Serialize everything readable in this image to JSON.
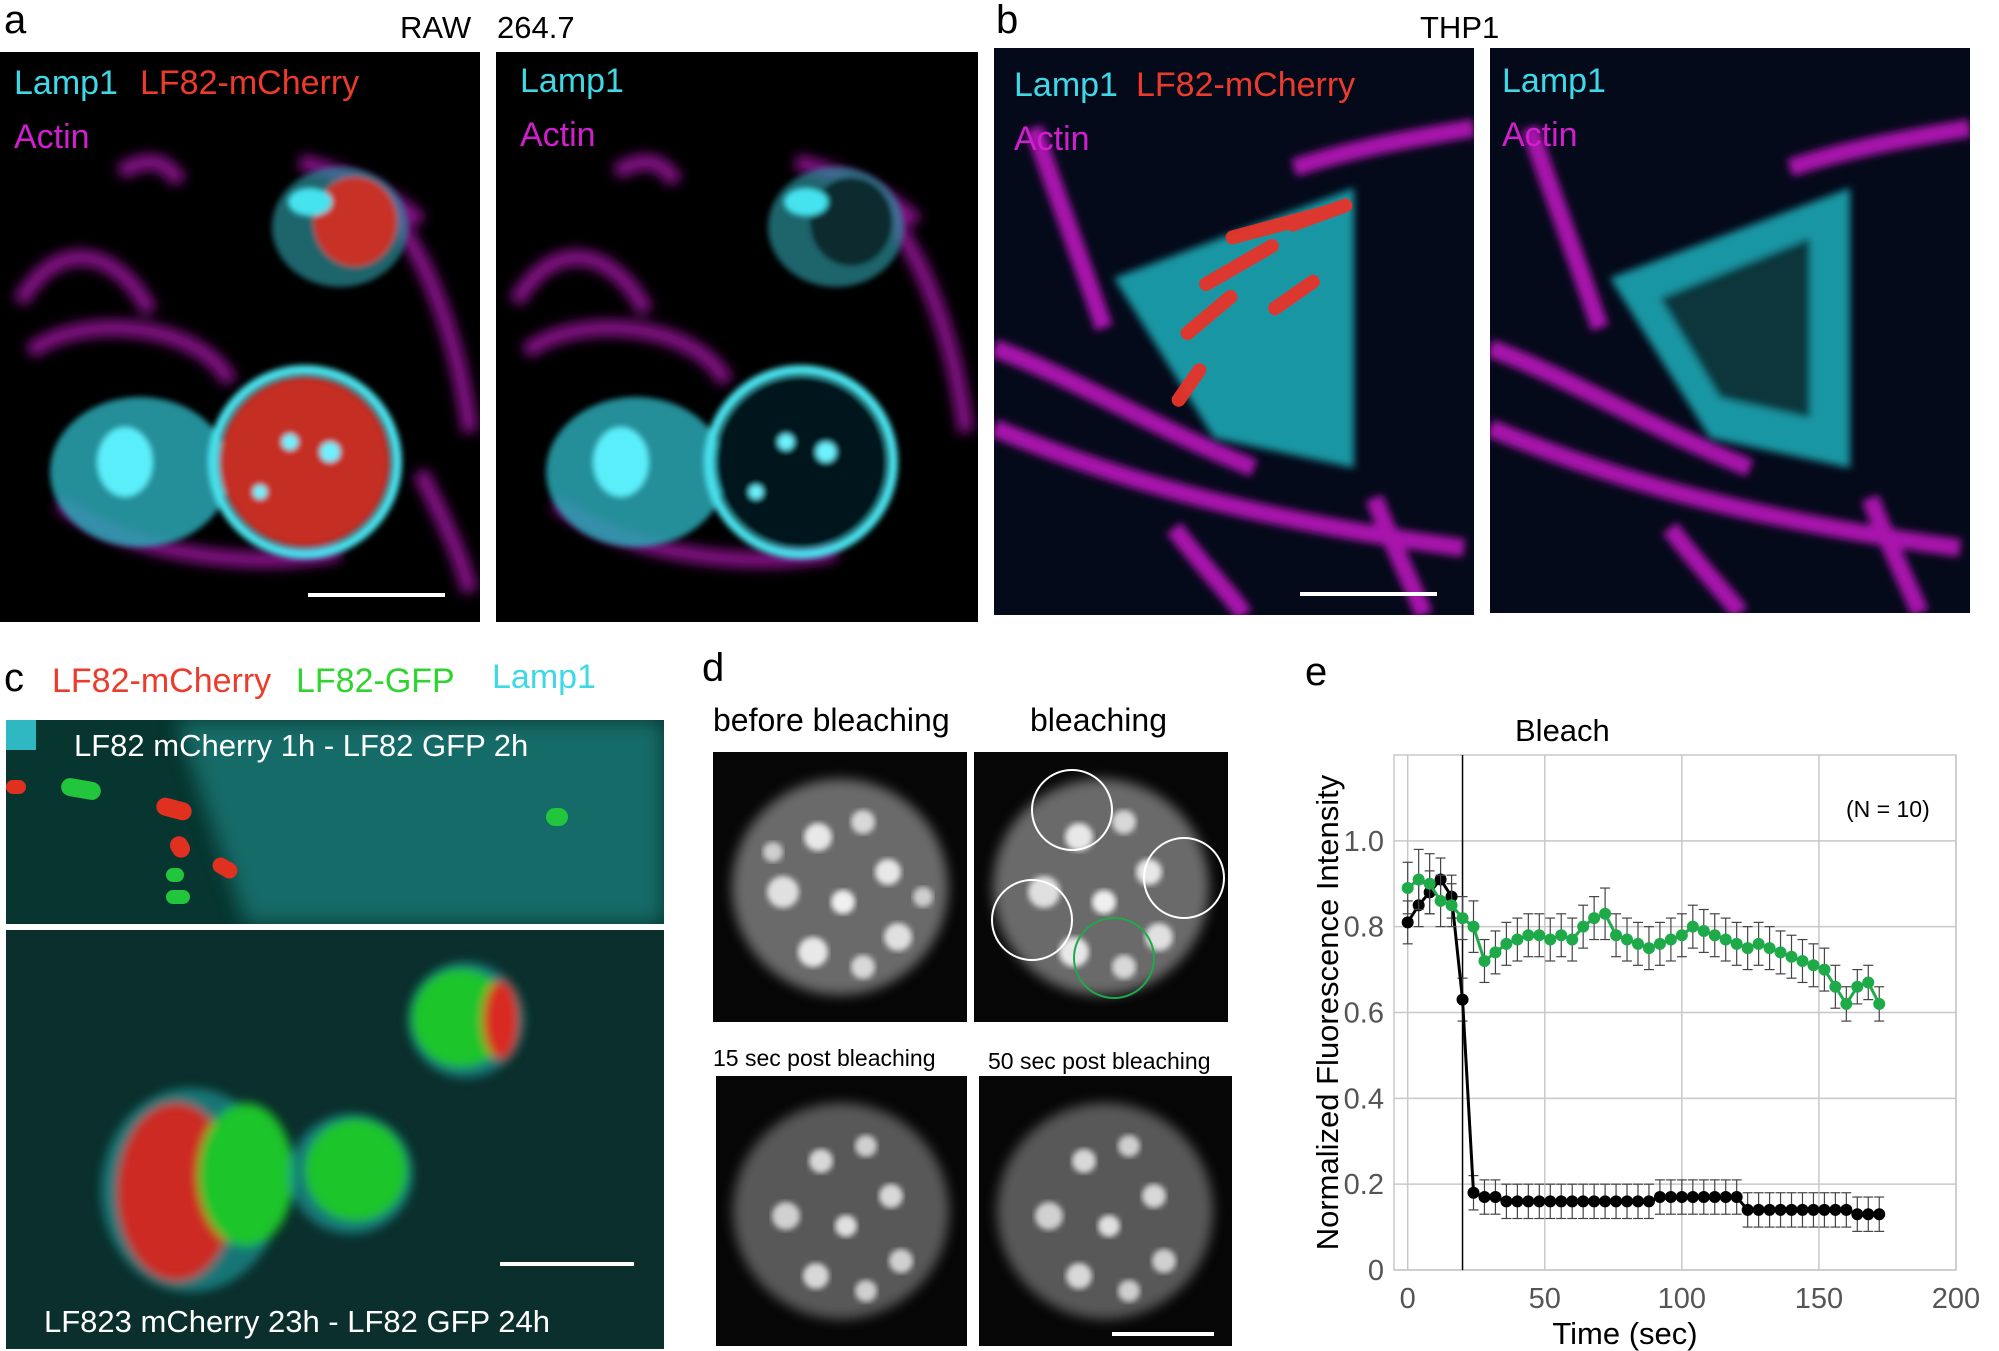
{
  "panels": {
    "a": {
      "letter": "a",
      "cell_line_part1": "RAW",
      "cell_line_part2": "264.7",
      "left": {
        "label1": "Lamp1",
        "label2": "LF82-mCherry",
        "label3": "Actin"
      },
      "right": {
        "label1": "Lamp1",
        "label2": "Actin"
      }
    },
    "b": {
      "letter": "b",
      "cell_line": "THP1",
      "left": {
        "label1": "Lamp1",
        "label2": "LF82-mCherry",
        "label3": "Actin"
      },
      "right": {
        "label1": "Lamp1",
        "label2": "Actin"
      }
    },
    "c": {
      "letter": "c",
      "legend1": "LF82-mCherry",
      "legend2": "LF82-GFP",
      "legend3": "Lamp1",
      "top_caption": "LF82 mCherry 1h - LF82 GFP 2h",
      "bottom_caption": "LF823 mCherry 23h - LF82 GFP 24h"
    },
    "d": {
      "letter": "d",
      "title1": "before bleaching",
      "title2": "bleaching",
      "title3": "15 sec post bleaching",
      "title4": "50 sec post bleaching"
    },
    "e": {
      "letter": "e",
      "bleach_label": "Bleach",
      "n_label": "(N = 10)"
    }
  },
  "colors": {
    "lamp1": "#3fd8e6",
    "mcherry": "#ec3b2a",
    "actin": "#d11fd0",
    "gfp": "#2fd52f",
    "green_series": "#1faa4a",
    "black_series": "#000000"
  },
  "chart_data": {
    "type": "line",
    "title": "",
    "xlabel": "Time (sec)",
    "ylabel": "Normalized Fluorescence Intensity",
    "xlim": [
      -5,
      200
    ],
    "ylim": [
      0,
      1.2
    ],
    "xticks": [
      0,
      50,
      100,
      150,
      200
    ],
    "yticks": [
      0,
      0.2,
      0.4,
      0.6,
      0.8,
      1.0
    ],
    "ytick_labels": [
      "0",
      "0.2",
      "0.4",
      "0.6",
      "0.8",
      "1.0"
    ],
    "grid": true,
    "bleach_time": 20,
    "series": [
      {
        "color": "#1faa4a",
        "x": [
          0,
          4,
          8,
          12,
          16,
          20,
          24,
          28,
          32,
          36,
          40,
          44,
          48,
          52,
          56,
          60,
          64,
          68,
          72,
          76,
          80,
          84,
          88,
          92,
          96,
          100,
          104,
          108,
          112,
          116,
          120,
          124,
          128,
          132,
          136,
          140,
          144,
          148,
          152,
          156,
          160,
          164,
          168,
          172
        ],
        "y": [
          0.89,
          0.91,
          0.9,
          0.86,
          0.85,
          0.82,
          0.8,
          0.72,
          0.74,
          0.76,
          0.77,
          0.78,
          0.78,
          0.77,
          0.78,
          0.77,
          0.8,
          0.82,
          0.83,
          0.78,
          0.77,
          0.76,
          0.75,
          0.76,
          0.77,
          0.78,
          0.8,
          0.79,
          0.78,
          0.77,
          0.76,
          0.75,
          0.76,
          0.75,
          0.74,
          0.73,
          0.72,
          0.71,
          0.7,
          0.66,
          0.62,
          0.66,
          0.67,
          0.62
        ],
        "err": [
          0.06,
          0.07,
          0.07,
          0.06,
          0.05,
          0.05,
          0.06,
          0.05,
          0.05,
          0.05,
          0.05,
          0.05,
          0.05,
          0.05,
          0.05,
          0.05,
          0.05,
          0.05,
          0.06,
          0.05,
          0.05,
          0.05,
          0.05,
          0.05,
          0.05,
          0.05,
          0.05,
          0.05,
          0.05,
          0.05,
          0.05,
          0.05,
          0.05,
          0.05,
          0.05,
          0.05,
          0.05,
          0.05,
          0.05,
          0.05,
          0.04,
          0.04,
          0.04,
          0.04
        ]
      },
      {
        "color": "#000000",
        "x": [
          0,
          4,
          8,
          12,
          16,
          20,
          24,
          28,
          32,
          36,
          40,
          44,
          48,
          52,
          56,
          60,
          64,
          68,
          72,
          76,
          80,
          84,
          88,
          92,
          96,
          100,
          104,
          108,
          112,
          116,
          120,
          124,
          128,
          132,
          136,
          140,
          144,
          148,
          152,
          156,
          160,
          164,
          168,
          172
        ],
        "y": [
          0.81,
          0.85,
          0.88,
          0.91,
          0.87,
          0.63,
          0.18,
          0.17,
          0.17,
          0.16,
          0.16,
          0.16,
          0.16,
          0.16,
          0.16,
          0.16,
          0.16,
          0.16,
          0.16,
          0.16,
          0.16,
          0.16,
          0.16,
          0.17,
          0.17,
          0.17,
          0.17,
          0.17,
          0.17,
          0.17,
          0.17,
          0.14,
          0.14,
          0.14,
          0.14,
          0.14,
          0.14,
          0.14,
          0.14,
          0.14,
          0.14,
          0.13,
          0.13,
          0.13
        ],
        "err": [
          0.05,
          0.05,
          0.05,
          0.05,
          0.05,
          0.05,
          0.04,
          0.04,
          0.04,
          0.04,
          0.04,
          0.04,
          0.04,
          0.04,
          0.04,
          0.04,
          0.04,
          0.04,
          0.04,
          0.04,
          0.04,
          0.04,
          0.04,
          0.04,
          0.04,
          0.04,
          0.04,
          0.04,
          0.04,
          0.04,
          0.04,
          0.04,
          0.04,
          0.04,
          0.04,
          0.04,
          0.04,
          0.04,
          0.04,
          0.04,
          0.04,
          0.04,
          0.04,
          0.04
        ]
      }
    ]
  }
}
